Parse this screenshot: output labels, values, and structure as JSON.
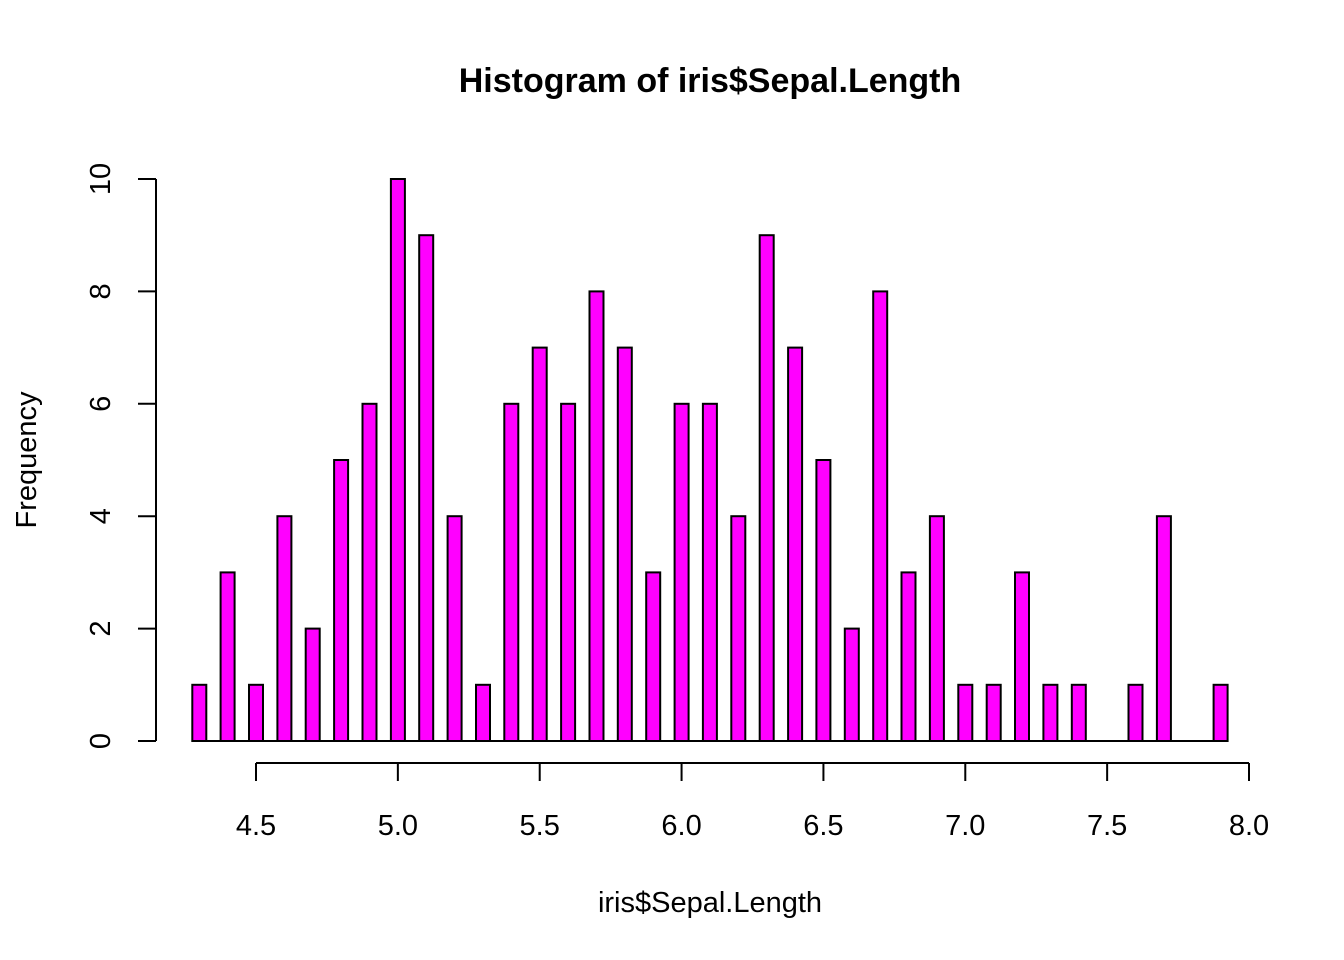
{
  "chart_data": {
    "type": "bar",
    "title": "Histogram of iris$Sepal.Length",
    "xlabel": "iris$Sepal.Length",
    "ylabel": "Frequency",
    "bar_color": "#ff00ff",
    "border_color": "#000000",
    "xlim": [
      4.3,
      8.0
    ],
    "ylim": [
      0,
      10
    ],
    "x_ticks": [
      "4.5",
      "5.0",
      "5.5",
      "6.0",
      "6.5",
      "7.0",
      "7.5",
      "8.0"
    ],
    "y_ticks": [
      "0",
      "2",
      "4",
      "6",
      "8",
      "10"
    ],
    "grid": false,
    "x": [
      4.3,
      4.4,
      4.5,
      4.6,
      4.7,
      4.8,
      4.9,
      5.0,
      5.1,
      5.2,
      5.3,
      5.4,
      5.5,
      5.6,
      5.7,
      5.8,
      5.9,
      6.0,
      6.1,
      6.2,
      6.3,
      6.4,
      6.5,
      6.6,
      6.7,
      6.8,
      6.9,
      7.0,
      7.1,
      7.2,
      7.3,
      7.4,
      7.6,
      7.7,
      7.9
    ],
    "values": [
      1,
      3,
      1,
      4,
      2,
      5,
      6,
      10,
      9,
      4,
      1,
      6,
      7,
      6,
      8,
      7,
      3,
      6,
      6,
      4,
      9,
      7,
      5,
      2,
      8,
      3,
      4,
      1,
      1,
      3,
      1,
      1,
      1,
      4,
      1
    ]
  }
}
